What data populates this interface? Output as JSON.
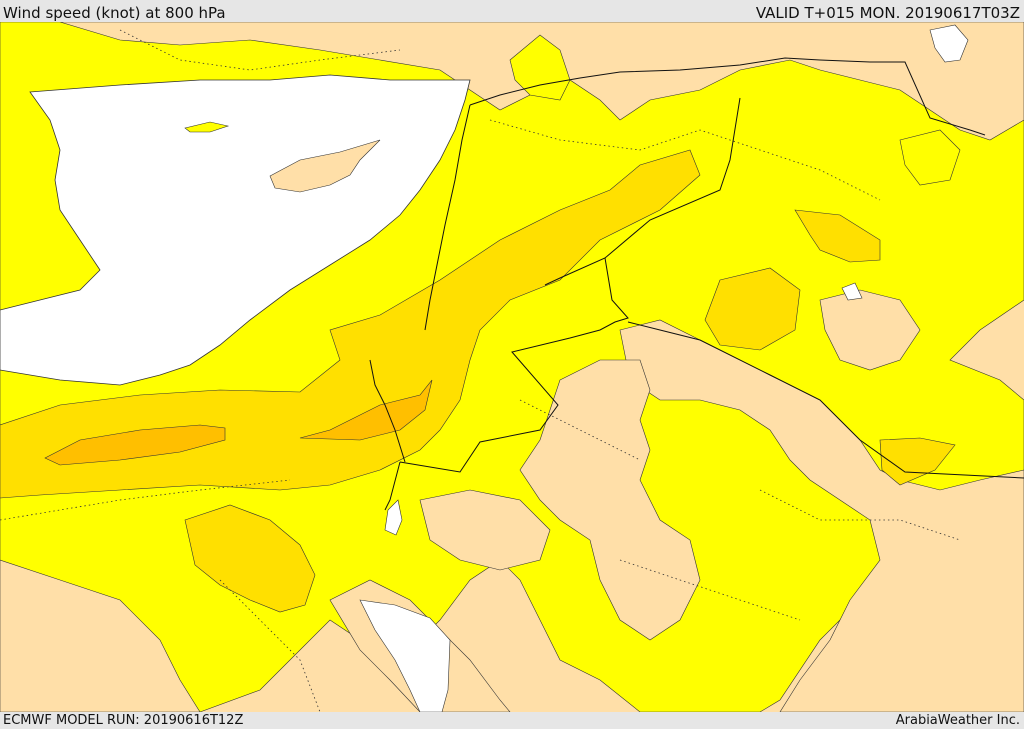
{
  "header": {
    "title": "Wind speed (knot) at 800 hPa",
    "valid": "VALID T+015 MON. 20190617T03Z"
  },
  "footer": {
    "model_run": "ECMWF MODEL RUN: 20190616T12Z",
    "credit": "ArabiaWeather Inc."
  },
  "colors": {
    "land_low": "#ffdfa8",
    "band_1": "#ffff00",
    "band_2": "#ffe000",
    "band_3": "#ffbf00",
    "sea": "#ffffff",
    "background": "#e6e6e6"
  }
}
